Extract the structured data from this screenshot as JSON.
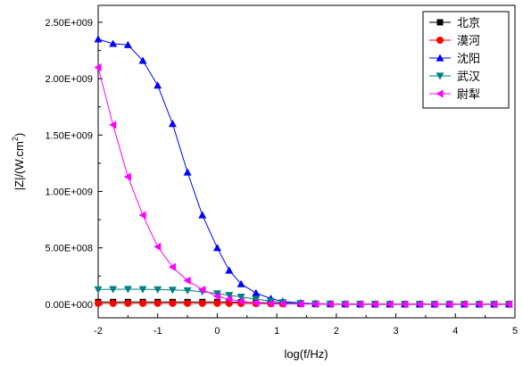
{
  "chart_data": {
    "type": "line",
    "title": "",
    "xlabel": "log(f/Hz)",
    "ylabel_main": "|Z|/(W.cm",
    "ylabel_sup": "2",
    "ylabel_tail": ")",
    "xlim": [
      -2,
      5
    ],
    "ylim": [
      -120000000,
      2650000000
    ],
    "x_ticks": [
      -2,
      -1,
      0,
      1,
      2,
      3,
      4,
      5
    ],
    "x_tick_labels": [
      "-2",
      "-1",
      "0",
      "1",
      "2",
      "3",
      "4",
      "5"
    ],
    "y_ticks": [
      0,
      500000000,
      1000000000,
      1500000000,
      2000000000,
      2500000000
    ],
    "y_tick_labels": [
      "0.00E+000",
      "5.00E+008",
      "1.00E+009",
      "1.50E+009",
      "2.00E+009",
      "2.50E+009"
    ],
    "grid": false,
    "legend_position": "top-right",
    "x": [
      -2.0,
      -1.75,
      -1.5,
      -1.25,
      -1.0,
      -0.75,
      -0.5,
      -0.25,
      0.0,
      0.2,
      0.4,
      0.65,
      0.9,
      1.1,
      1.4,
      1.65,
      1.9,
      2.15,
      2.4,
      2.65,
      2.9,
      3.15,
      3.4,
      3.65,
      3.9,
      4.15,
      4.4,
      4.65,
      4.9
    ],
    "series": [
      {
        "name": "北京",
        "color": "#000000",
        "marker": "square",
        "values": [
          20000000,
          20000000,
          20000000,
          20000000,
          20000000,
          20000000,
          20000000,
          20000000,
          20000000,
          19000000,
          18000000,
          16000000,
          12000000,
          8000000,
          5000000,
          3000000,
          2000000,
          1500000,
          1000000,
          800000,
          600000,
          500000,
          400000,
          300000,
          300000,
          200000,
          200000,
          200000,
          200000
        ]
      },
      {
        "name": "漠河",
        "color": "#ff0000",
        "marker": "circle",
        "values": [
          8000000,
          8000000,
          8000000,
          8000000,
          8000000,
          8000000,
          8000000,
          8000000,
          8000000,
          8000000,
          7000000,
          6000000,
          5000000,
          4000000,
          3000000,
          2000000,
          1500000,
          1000000,
          800000,
          600000,
          500000,
          400000,
          300000,
          300000,
          200000,
          200000,
          200000,
          200000,
          200000
        ]
      },
      {
        "name": "沈阳",
        "color": "#0000ff",
        "marker": "triangle-up",
        "values": [
          2350000000,
          2310000000,
          2300000000,
          2160000000,
          1940000000,
          1600000000,
          1170000000,
          790000000,
          500000000,
          300000000,
          180000000,
          100000000,
          50000000,
          25000000,
          12000000,
          6000000,
          3000000,
          2000000,
          1500000,
          1000000,
          800000,
          600000,
          500000,
          400000,
          300000,
          300000,
          200000,
          200000,
          200000
        ]
      },
      {
        "name": "武汉",
        "color": "#008080",
        "marker": "triangle-down",
        "values": [
          130000000,
          132000000,
          133000000,
          132000000,
          130000000,
          127000000,
          122000000,
          112000000,
          95000000,
          80000000,
          65000000,
          45000000,
          28000000,
          16000000,
          8000000,
          4000000,
          2500000,
          1500000,
          1000000,
          800000,
          600000,
          500000,
          400000,
          300000,
          300000,
          200000,
          200000,
          200000,
          200000
        ]
      },
      {
        "name": "尉犁",
        "color": "#ff00ff",
        "marker": "triangle-left",
        "values": [
          2100000000,
          1590000000,
          1130000000,
          790000000,
          510000000,
          330000000,
          210000000,
          130000000,
          70000000,
          45000000,
          25000000,
          13000000,
          7000000,
          4000000,
          2500000,
          1500000,
          1000000,
          800000,
          600000,
          500000,
          400000,
          300000,
          300000,
          200000,
          200000,
          200000,
          200000,
          200000,
          200000
        ]
      }
    ]
  }
}
